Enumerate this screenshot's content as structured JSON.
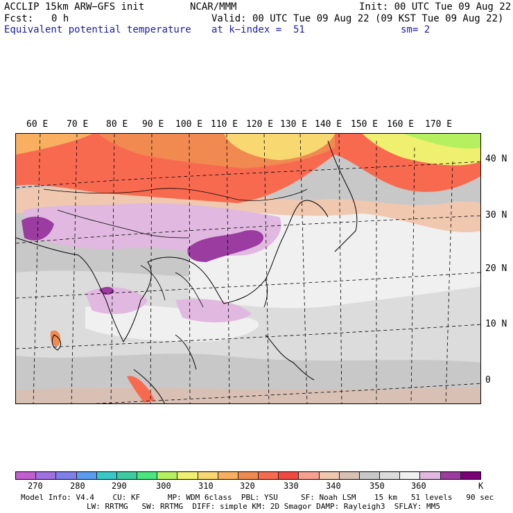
{
  "header": {
    "title_left": "ACCLIP 15km ARW−GFS init",
    "center": "NCAR/MMM",
    "init": "Init: 00 UTC Tue 09 Aug 22",
    "fcst_label": "Fcst:",
    "fcst_value": "0 h",
    "valid": "Valid: 00 UTC Tue 09 Aug 22 (09 KST Tue 09 Aug 22)",
    "field": "Equivalent potential temperature",
    "level": "at k−index =  51",
    "smoothing": "sm= 2"
  },
  "map": {
    "lon_labels": [
      "60 E",
      "70 E",
      "80 E",
      "90 E",
      "100 E",
      "110 E",
      "120 E",
      "130 E",
      "140 E",
      "150 E",
      "160 E",
      "170 E"
    ],
    "lat_labels": [
      "40 N",
      "30 N",
      "20 N",
      "10 N",
      "0"
    ]
  },
  "colorbar": {
    "unit": "K",
    "colors": [
      "#c060d0",
      "#a070e0",
      "#7f7fe8",
      "#5a9cf0",
      "#38c8c8",
      "#3ccca0",
      "#4ae67f",
      "#b4f060",
      "#f0f070",
      "#f8d870",
      "#f8b060",
      "#f08a50",
      "#f86a50",
      "#f04a40",
      "#f8a090",
      "#f0c8b0",
      "#d8c0b4",
      "#c8c8c8",
      "#dcdcdc",
      "#f0f0f0",
      "#e0b8e0",
      "#9a3ca0",
      "#7a007a"
    ],
    "tick_labels": [
      "270",
      "280",
      "290",
      "300",
      "310",
      "320",
      "330",
      "340",
      "350",
      "360"
    ]
  },
  "footer": {
    "line1": "Model Info: V4.4    CU: KF      MP: WDM 6class  PBL: YSU     SF: Noah LSM    15 km   51 levels   90 sec",
    "line2": "LW: RRTMG   SW: RRTMG  DIFF: simple KM: 2D Smagor DAMP: Rayleigh3  SFLAY: MM5"
  }
}
